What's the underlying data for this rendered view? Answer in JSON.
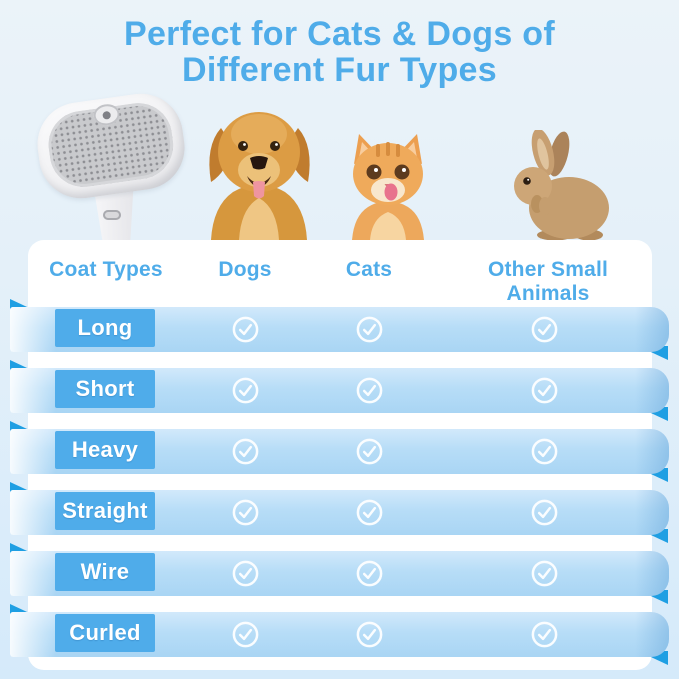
{
  "title": {
    "line1": "Perfect for Cats & Dogs of",
    "line2": "Different Fur Types"
  },
  "hero": {
    "icons": [
      "grooming-brush",
      "golden-dog",
      "orange-cat",
      "brown-rabbit"
    ]
  },
  "table": {
    "headers": [
      "Coat Types",
      "Dogs",
      "Cats",
      "Other Small Animals"
    ],
    "rows": [
      {
        "label": "Long",
        "dogs": true,
        "cats": true,
        "other_small_animals": true
      },
      {
        "label": "Short",
        "dogs": true,
        "cats": true,
        "other_small_animals": true
      },
      {
        "label": "Heavy",
        "dogs": true,
        "cats": true,
        "other_small_animals": true
      },
      {
        "label": "Straight",
        "dogs": true,
        "cats": true,
        "other_small_animals": true
      },
      {
        "label": "Wire",
        "dogs": true,
        "cats": true,
        "other_small_animals": true
      },
      {
        "label": "Curled",
        "dogs": true,
        "cats": true,
        "other_small_animals": true
      }
    ],
    "check_icon": "check-circle"
  },
  "colors": {
    "accent": "#4FACE9",
    "ribbon_band": "#B7DDF7",
    "ribbon_chip": "#4FACEA",
    "ribbon_fold": "#1F9FE3",
    "card_bg": "#FFFFFF",
    "page_bg_top": "#EBF3F9",
    "page_bg_bottom": "#D5EAFA",
    "check_color": "#FFFFFF"
  }
}
